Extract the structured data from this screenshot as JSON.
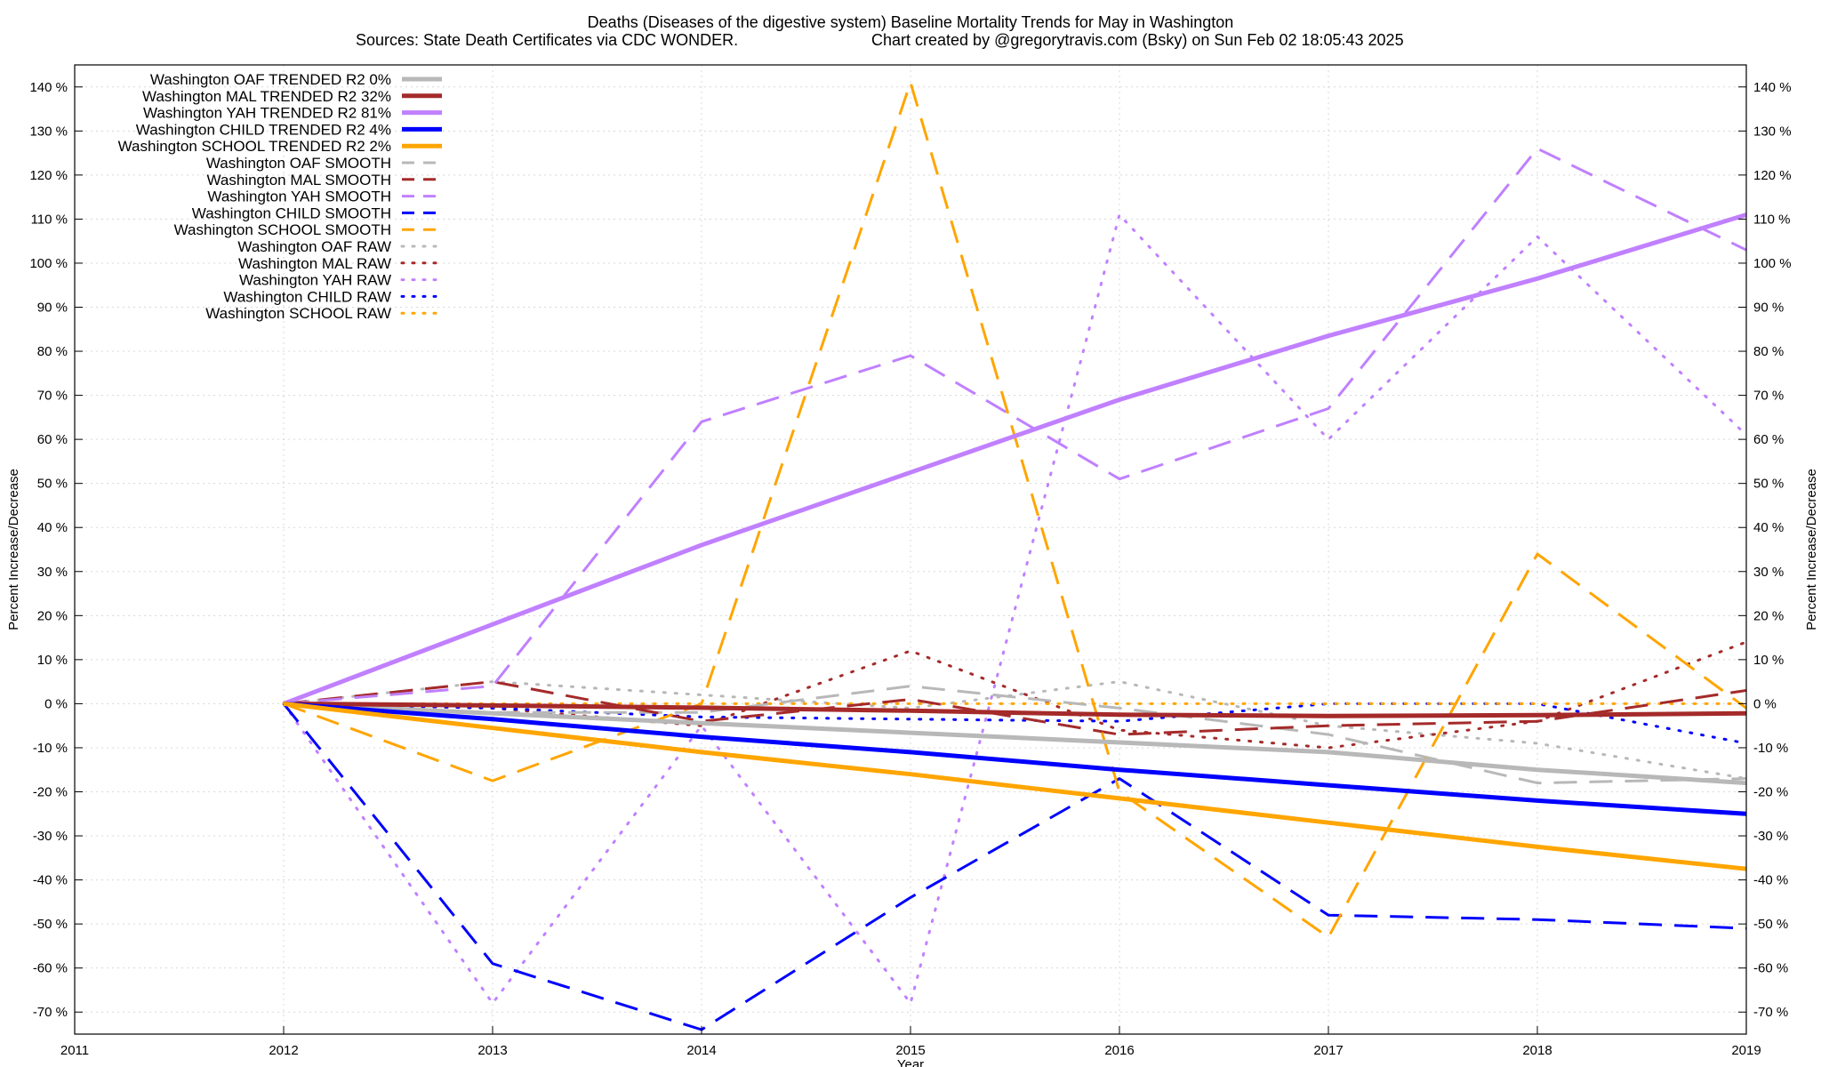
{
  "chart_data": {
    "type": "line",
    "title": "Deaths (Diseases of the digestive system)  Baseline Mortality Trends for May in Washington",
    "subtitle_left": "Sources: State Death Certificates via CDC WONDER.",
    "subtitle_right": "Chart created by @gregorytravis.com (Bsky) on Sun Feb 02 18:05:43 2025",
    "xlabel": "Year",
    "ylabel_left": "Percent Increase/Decrease",
    "ylabel_right": "Percent Increase/Decrease",
    "xlim": [
      2011,
      2019
    ],
    "ylim": [
      -75,
      145
    ],
    "x_ticks": [
      "2011",
      "2012",
      "2013",
      "2014",
      "2015",
      "2016",
      "2017",
      "2018",
      "2019"
    ],
    "y_ticks": [
      "140 %",
      "130 %",
      "120 %",
      "110 %",
      "100 %",
      "90 %",
      "80 %",
      "70 %",
      "60 %",
      "50 %",
      "40 %",
      "30 %",
      "20 %",
      "10 %",
      "0 %",
      "-10 %",
      "-20 %",
      "-30 %",
      "-40 %",
      "-50 %",
      "-60 %",
      "-70 %"
    ],
    "grid": true,
    "legend_position": "top-left",
    "x": [
      2012,
      2013,
      2014,
      2015,
      2016,
      2017,
      2018,
      2019
    ],
    "series": [
      {
        "name": "Washington OAF TRENDED R2   0%",
        "style": "solid",
        "color": "#b8b8b8",
        "values": [
          0,
          -2.2,
          -4.4,
          -6.6,
          -8.8,
          -11,
          -15,
          -18
        ]
      },
      {
        "name": "Washington MAL TRENDED R2  32%",
        "style": "solid",
        "color": "#a52a2a",
        "values": [
          0,
          -0.4,
          -0.9,
          -1.6,
          -2.5,
          -2.8,
          -2.6,
          -2.2
        ]
      },
      {
        "name": "Washington YAH TRENDED R2  81%",
        "style": "solid",
        "color": "#c080ff",
        "values": [
          0,
          18,
          36,
          52.5,
          69,
          83.5,
          96.5,
          111
        ]
      },
      {
        "name": "Washington CHILD TRENDED R2   4%",
        "style": "solid",
        "color": "#0000ff",
        "values": [
          0,
          -3.5,
          -7.5,
          -11,
          -15,
          -18.5,
          -22,
          -25
        ]
      },
      {
        "name": "Washington SCHOOL TRENDED R2   2%",
        "style": "solid",
        "color": "#ffa500",
        "values": [
          0,
          -5.5,
          -11,
          -16,
          -21.5,
          -27,
          -32.5,
          -37.5
        ]
      },
      {
        "name": "Washington OAF SMOOTH",
        "style": "dashed",
        "color": "#b8b8b8",
        "values": [
          0,
          -2,
          -2,
          4,
          -1,
          -7,
          -18,
          -17
        ]
      },
      {
        "name": "Washington MAL SMOOTH",
        "style": "dashed",
        "color": "#a52a2a",
        "values": [
          0,
          5,
          -4,
          1,
          -7,
          -5,
          -4,
          3
        ]
      },
      {
        "name": "Washington YAH SMOOTH",
        "style": "dashed",
        "color": "#c080ff",
        "values": [
          0,
          4,
          64,
          79,
          51,
          67,
          126,
          103
        ]
      },
      {
        "name": "Washington CHILD SMOOTH",
        "style": "dashed",
        "color": "#0000ff",
        "values": [
          0,
          -59,
          -74,
          -44,
          -17,
          -48,
          -49,
          -51
        ]
      },
      {
        "name": "Washington SCHOOL SMOOTH",
        "style": "dashed",
        "color": "#ffa500",
        "values": [
          0,
          -17.5,
          0,
          141,
          -20,
          -53,
          34,
          -1
        ]
      },
      {
        "name": "Washington OAF RAW",
        "style": "dotted",
        "color": "#b8b8b8",
        "values": [
          0,
          5,
          2,
          -1,
          5,
          -5,
          -9,
          -17
        ]
      },
      {
        "name": "Washington MAL RAW",
        "style": "dotted",
        "color": "#a52a2a",
        "values": [
          0,
          -1,
          -5,
          12,
          -6,
          -10,
          -4,
          14
        ]
      },
      {
        "name": "Washington YAH RAW",
        "style": "dotted",
        "color": "#c080ff",
        "values": [
          0,
          -68,
          -5,
          -68,
          111,
          60,
          106,
          61
        ]
      },
      {
        "name": "Washington CHILD RAW",
        "style": "dotted",
        "color": "#0000ff",
        "values": [
          0,
          -1,
          -3,
          -3.5,
          -4,
          0,
          0,
          -9
        ]
      },
      {
        "name": "Washington SCHOOL RAW",
        "style": "dotted",
        "color": "#ffa500",
        "values": [
          0,
          0,
          0,
          0,
          0,
          0,
          0,
          0
        ]
      }
    ]
  }
}
